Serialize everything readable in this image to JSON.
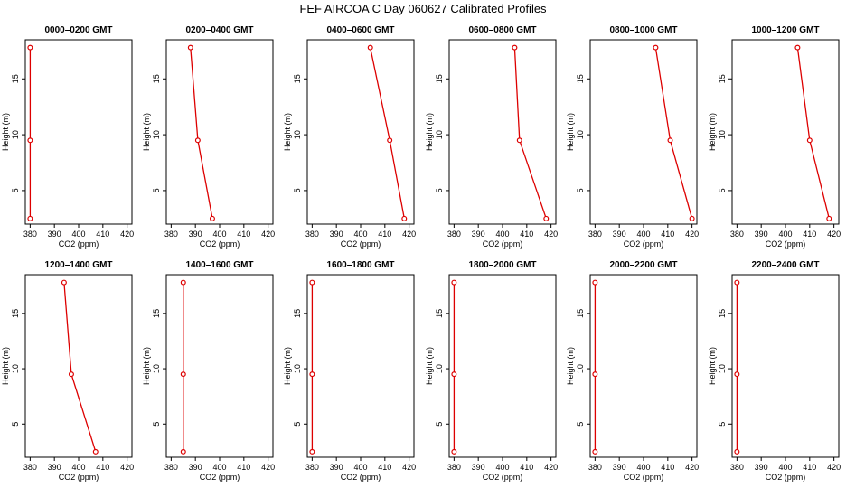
{
  "figure": {
    "title": "FEF AIRCOA C  Day 060627  Calibrated Profiles"
  },
  "style": {
    "line_color": "#dd0000",
    "marker_color": "#dd0000",
    "axis_color": "#000000"
  },
  "chart_data": [
    {
      "type": "line",
      "title": "0000–0200 GMT",
      "xlabel": "CO2 (ppm)",
      "ylabel": "Height (m)",
      "xlim": [
        378,
        422
      ],
      "ylim": [
        2,
        18.5
      ],
      "xticks": [
        380,
        390,
        400,
        410,
        420
      ],
      "yticks": [
        5,
        10,
        15
      ],
      "x": [
        380,
        380,
        380
      ],
      "y": [
        2.5,
        9.5,
        17.8
      ]
    },
    {
      "type": "line",
      "title": "0200–0400 GMT",
      "xlabel": "CO2 (ppm)",
      "ylabel": "Height (m)",
      "xlim": [
        378,
        422
      ],
      "ylim": [
        2,
        18.5
      ],
      "xticks": [
        380,
        390,
        400,
        410,
        420
      ],
      "yticks": [
        5,
        10,
        15
      ],
      "x": [
        397,
        391,
        388
      ],
      "y": [
        2.5,
        9.5,
        17.8
      ]
    },
    {
      "type": "line",
      "title": "0400–0600 GMT",
      "xlabel": "CO2 (ppm)",
      "ylabel": "Height (m)",
      "xlim": [
        378,
        422
      ],
      "ylim": [
        2,
        18.5
      ],
      "xticks": [
        380,
        390,
        400,
        410,
        420
      ],
      "yticks": [
        5,
        10,
        15
      ],
      "x": [
        418,
        412,
        404
      ],
      "y": [
        2.5,
        9.5,
        17.8
      ]
    },
    {
      "type": "line",
      "title": "0600–0800 GMT",
      "xlabel": "CO2 (ppm)",
      "ylabel": "Height (m)",
      "xlim": [
        378,
        422
      ],
      "ylim": [
        2,
        18.5
      ],
      "xticks": [
        380,
        390,
        400,
        410,
        420
      ],
      "yticks": [
        5,
        10,
        15
      ],
      "x": [
        418,
        407,
        405
      ],
      "y": [
        2.5,
        9.5,
        17.8
      ]
    },
    {
      "type": "line",
      "title": "0800–1000 GMT",
      "xlabel": "CO2 (ppm)",
      "ylabel": "Height (m)",
      "xlim": [
        378,
        422
      ],
      "ylim": [
        2,
        18.5
      ],
      "xticks": [
        380,
        390,
        400,
        410,
        420
      ],
      "yticks": [
        5,
        10,
        15
      ],
      "x": [
        420,
        411,
        405
      ],
      "y": [
        2.5,
        9.5,
        17.8
      ]
    },
    {
      "type": "line",
      "title": "1000–1200 GMT",
      "xlabel": "CO2 (ppm)",
      "ylabel": "Height (m)",
      "xlim": [
        378,
        422
      ],
      "ylim": [
        2,
        18.5
      ],
      "xticks": [
        380,
        390,
        400,
        410,
        420
      ],
      "yticks": [
        5,
        10,
        15
      ],
      "x": [
        418,
        410,
        405
      ],
      "y": [
        2.5,
        9.5,
        17.8
      ]
    },
    {
      "type": "line",
      "title": "1200–1400 GMT",
      "xlabel": "CO2 (ppm)",
      "ylabel": "Height (m)",
      "xlim": [
        378,
        422
      ],
      "ylim": [
        2,
        18.5
      ],
      "xticks": [
        380,
        390,
        400,
        410,
        420
      ],
      "yticks": [
        5,
        10,
        15
      ],
      "x": [
        407,
        397,
        394
      ],
      "y": [
        2.5,
        9.5,
        17.8
      ]
    },
    {
      "type": "line",
      "title": "1400–1600 GMT",
      "xlabel": "CO2 (ppm)",
      "ylabel": "Height (m)",
      "xlim": [
        378,
        422
      ],
      "ylim": [
        2,
        18.5
      ],
      "xticks": [
        380,
        390,
        400,
        410,
        420
      ],
      "yticks": [
        5,
        10,
        15
      ],
      "x": [
        385,
        385,
        385
      ],
      "y": [
        2.5,
        9.5,
        17.8
      ]
    },
    {
      "type": "line",
      "title": "1600–1800 GMT",
      "xlabel": "CO2 (ppm)",
      "ylabel": "Height (m)",
      "xlim": [
        378,
        422
      ],
      "ylim": [
        2,
        18.5
      ],
      "xticks": [
        380,
        390,
        400,
        410,
        420
      ],
      "yticks": [
        5,
        10,
        15
      ],
      "x": [
        380,
        380,
        380
      ],
      "y": [
        2.5,
        9.5,
        17.8
      ]
    },
    {
      "type": "line",
      "title": "1800–2000 GMT",
      "xlabel": "CO2 (ppm)",
      "ylabel": "Height (m)",
      "xlim": [
        378,
        422
      ],
      "ylim": [
        2,
        18.5
      ],
      "xticks": [
        380,
        390,
        400,
        410,
        420
      ],
      "yticks": [
        5,
        10,
        15
      ],
      "x": [
        380,
        380,
        380
      ],
      "y": [
        2.5,
        9.5,
        17.8
      ]
    },
    {
      "type": "line",
      "title": "2000–2200 GMT",
      "xlabel": "CO2 (ppm)",
      "ylabel": "Height (m)",
      "xlim": [
        378,
        422
      ],
      "ylim": [
        2,
        18.5
      ],
      "xticks": [
        380,
        390,
        400,
        410,
        420
      ],
      "yticks": [
        5,
        10,
        15
      ],
      "x": [
        380,
        380,
        380
      ],
      "y": [
        2.5,
        9.5,
        17.8
      ]
    },
    {
      "type": "line",
      "title": "2200–2400 GMT",
      "xlabel": "CO2 (ppm)",
      "ylabel": "Height (m)",
      "xlim": [
        378,
        422
      ],
      "ylim": [
        2,
        18.5
      ],
      "xticks": [
        380,
        390,
        400,
        410,
        420
      ],
      "yticks": [
        5,
        10,
        15
      ],
      "x": [
        380,
        380,
        380
      ],
      "y": [
        2.5,
        9.5,
        17.8
      ]
    }
  ]
}
